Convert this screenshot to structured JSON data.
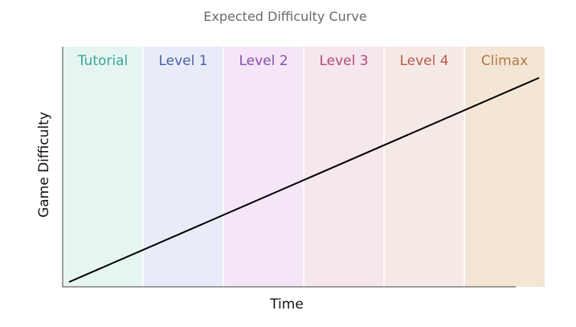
{
  "chart_data": {
    "type": "line",
    "title": "Expected Difficulty Curve",
    "xlabel": "Time",
    "ylabel": "Game Difficulty",
    "xlim": [
      0,
      6
    ],
    "ylim": [
      0,
      1
    ],
    "grid": false,
    "legend": "none",
    "phases": [
      {
        "label": "Tutorial",
        "start": 0,
        "end": 1,
        "band_color": "#e6f5f2",
        "text_color": "#3aa597"
      },
      {
        "label": "Level 1",
        "start": 1,
        "end": 2,
        "band_color": "#e9ecf8",
        "text_color": "#4a5fa8"
      },
      {
        "label": "Level 2",
        "start": 2,
        "end": 3,
        "band_color": "#f4e6f6",
        "text_color": "#8a4db0"
      },
      {
        "label": "Level 3",
        "start": 3,
        "end": 4,
        "band_color": "#f6e6ee",
        "text_color": "#b04a78"
      },
      {
        "label": "Level 4",
        "start": 4,
        "end": 5,
        "band_color": "#f6eae7",
        "text_color": "#b85a48"
      },
      {
        "label": "Climax",
        "start": 5,
        "end": 6,
        "band_color": "#f4e6d5",
        "text_color": "#b0784a"
      }
    ],
    "series": [
      {
        "x": [
          0.08,
          5.93
        ],
        "y": [
          0.02,
          0.87
        ],
        "color": "#000000"
      }
    ]
  }
}
